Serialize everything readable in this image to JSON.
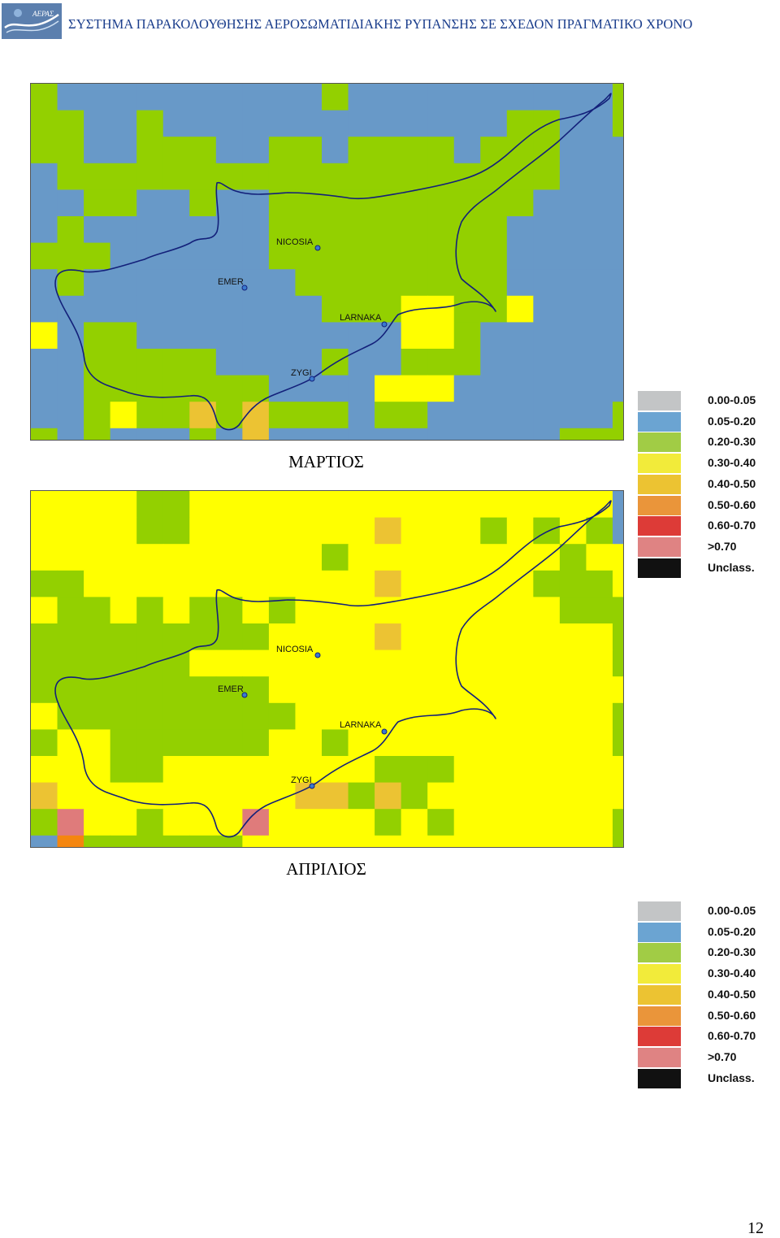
{
  "header": {
    "title": "ΣΥΣΤΗΜΑ ΠΑΡΑΚΟΛΟΥΘΗΣΗΣ ΑΕΡΟΣΩΜΑΤΙΔΙΑΚΗΣ ΡΥΠΑΝΣΗΣ ΣΕ ΣΧΕΔΟΝ ΠΡΑΓΜΑΤΙΚΟ ΧΡΟΝΟ",
    "logo_text": "ΑΕΡΑΣ",
    "logo_colors": {
      "bg": "#5b7fae",
      "wave": "#ffffff"
    }
  },
  "legend": {
    "items": [
      {
        "label": "0.00-0.05",
        "color": "#c3c5c6"
      },
      {
        "label": "0.05-0.20",
        "color": "#6ba4d2"
      },
      {
        "label": "0.20-0.30",
        "color": "#a1cc45"
      },
      {
        "label": "0.30-0.40",
        "color": "#f2eb3a"
      },
      {
        "label": "0.40-0.50",
        "color": "#ecc332"
      },
      {
        "label": "0.50-0.60",
        "color": "#ea953a"
      },
      {
        "label": "0.60-0.70",
        "color": "#dd3b37"
      },
      {
        "label": ">0.70",
        "color": "#df8383"
      },
      {
        "label": "Unclass.",
        "color": "#111111"
      }
    ]
  },
  "grid_palette": {
    "W": "#ffffff",
    "B": "#6899c8",
    "G": "#93d000",
    "Y": "#ffff00",
    "O": "#ecc333",
    "R": "#f5860f",
    "P": "#df7b7b"
  },
  "cities": [
    {
      "name": "NICOSIA"
    },
    {
      "name": "EMER"
    },
    {
      "name": "LARNAKA"
    },
    {
      "name": "ZYGI"
    }
  ],
  "maps": [
    {
      "caption": "ΜΑΡΤΙΟΣ",
      "grid": [
        "GBBBBBBBBBBGBBBBBBBBBBG",
        "GGBBGBBBBBBBBBBBBBGGBBG",
        "GGBBGGGBBGGBGGGGBGGGBBB",
        "BGGGGGGGGGGGGGGGGGGGBBB",
        "BBGGBBGBBGGGGGGGGGGBBBB",
        "BGBBBBBBBGGGGGGGGGBBBBB",
        "GGGBBBBBBGGGGGGGGGBBBBB",
        "BGBBBBBBBBGGGGGGGGBBBBB",
        "BBBBBBBBBBBGGGYYGGYBBBB",
        "YBGGBBBBBBBBBBYYGBBBBBB",
        "BBGGGGGBBBBGBBGGGBBBBBB",
        "BBGGGGGGGBBBBYYYBBBBBBB",
        "BBGYGGOGOGGGBGGBBBBBBBG",
        "GBGBBBGBOBBBBBBBBBBBGGG",
        "WWWWWWWWWWWWWWWWWWWWWWW"
      ]
    },
    {
      "caption": "ΑΠΡΙΛΙΟΣ",
      "grid": [
        "YYYYGGYYYYYYYYYYYYYYYYB",
        "YYYYGGYYYYYYYOYYYGYGYGB",
        "YYYYYYYYYYYGYYYYYYYYGYY",
        "GGYYYYYYYYYYYOYYYYYGGGY",
        "YGGYGYGGYGYYYYYYYYYYGGG",
        "GGGGGGGGGYYYYOYYYYYYYYG",
        "GGGGGGYYYYYYYYYYYYYYYYG",
        "GGGGGGGGGYYYYYYYYYYYYYY",
        "YGGGGGGGGGYYYYYYYYYYYYG",
        "GYYGGGGGGYYGYYYYYYYYYYG",
        "YYYGGYYYYYYYYGGGYYYYYYY",
        "OYYYYYYYYYOOGOGYYYYYYYY",
        "GPYYGYYYPYYYYGYGYYYYYYG",
        "BRGGGGGGYYYYYYYYYYYYYYG",
        "WWWWWWWWWWWWWWWWWWWWWWW"
      ]
    }
  ],
  "page_number": "12"
}
